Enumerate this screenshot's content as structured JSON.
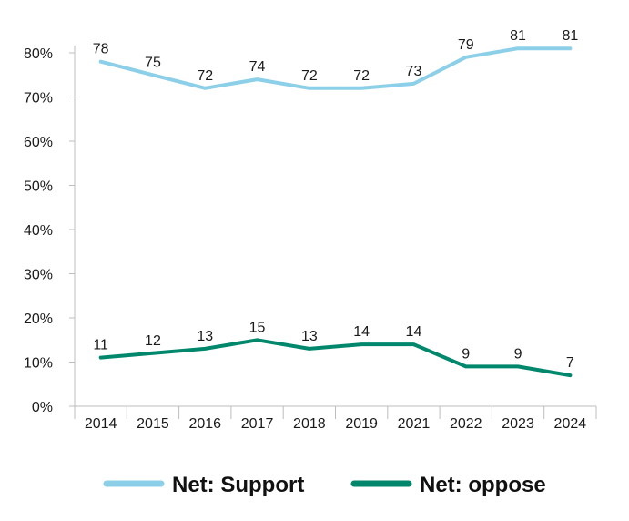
{
  "chart_data": {
    "type": "line",
    "categories": [
      "2014",
      "2015",
      "2016",
      "2017",
      "2018",
      "2019",
      "2021",
      "2022",
      "2023",
      "2024"
    ],
    "series": [
      {
        "name": "Net: Support",
        "color": "#8ccfe8",
        "values": [
          78,
          75,
          72,
          74,
          72,
          72,
          73,
          79,
          81,
          81
        ]
      },
      {
        "name": "Net: oppose",
        "color": "#00876c",
        "values": [
          11,
          12,
          13,
          15,
          13,
          14,
          14,
          9,
          9,
          7
        ]
      }
    ],
    "y_ticks": [
      "0%",
      "10%",
      "20%",
      "30%",
      "40%",
      "50%",
      "60%",
      "70%",
      "80%"
    ],
    "ylim": [
      0,
      80
    ],
    "grid": false,
    "legend_position": "bottom",
    "title": "",
    "xlabel": "",
    "ylabel": ""
  }
}
